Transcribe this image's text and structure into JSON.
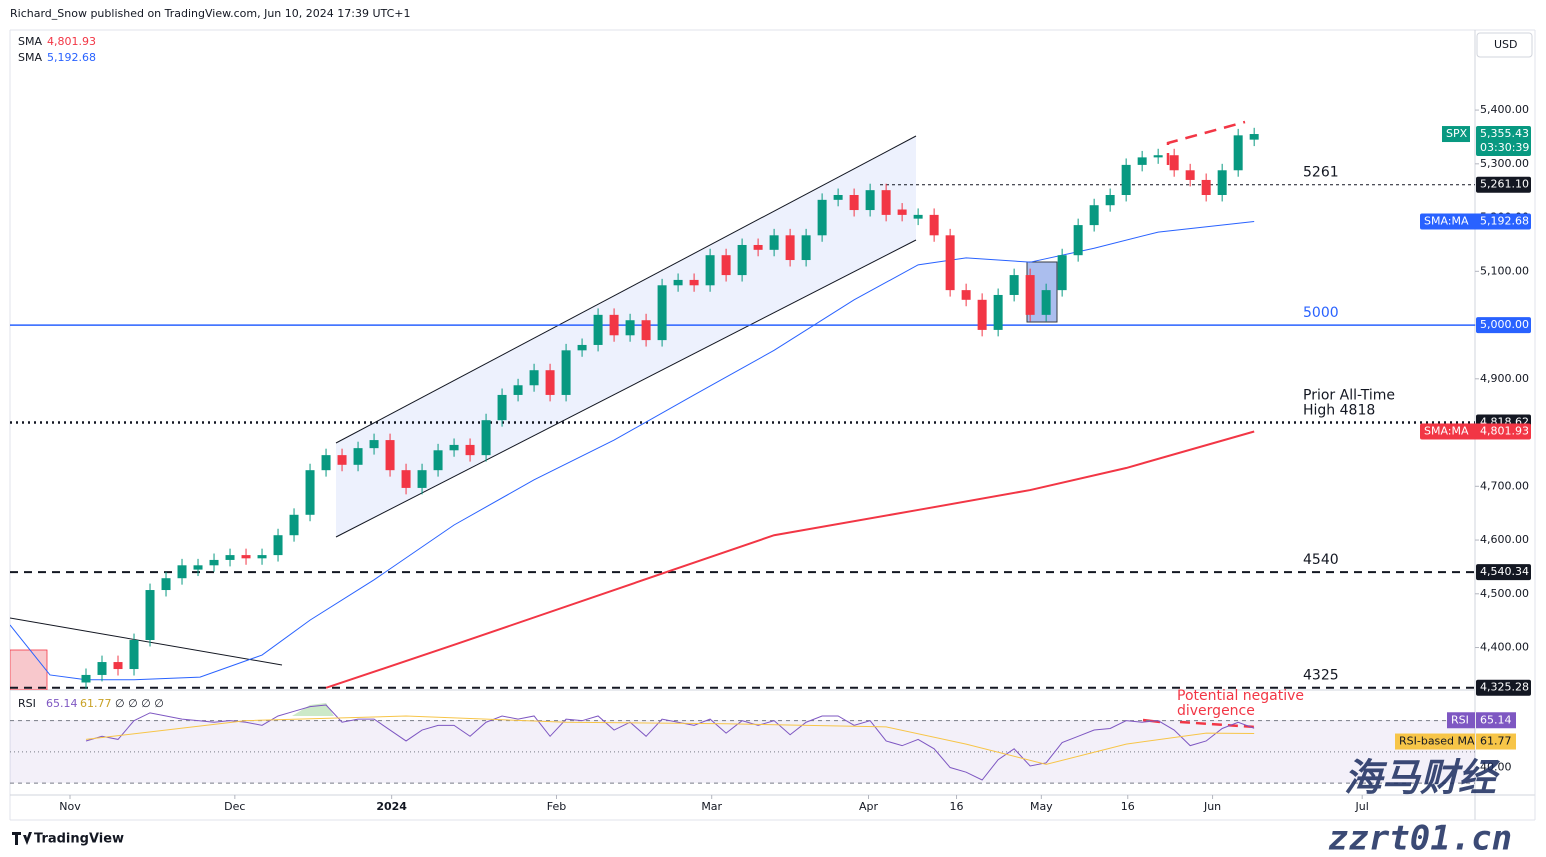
{
  "credit": "Richard_Snow published on TradingView.com, Jun 10, 2024 17:39 UTC+1",
  "currency": "USD",
  "brand": "TradingView",
  "watermark": [
    "海马财经",
    "zzrt01.cn"
  ],
  "chart_data": [
    {
      "type": "candlestick",
      "up_color": "#089981",
      "down_color": "#f23645",
      "open": [
        4335,
        4349,
        4373,
        4360,
        4414,
        4507,
        4529,
        4545,
        4553,
        4563,
        4572,
        4566,
        4572,
        4609,
        4647,
        4730,
        4758,
        4740,
        4771,
        4786,
        4730,
        4697,
        4730,
        4767,
        4777,
        4758,
        4823,
        4870,
        4888,
        4916,
        4870,
        4953,
        4963,
        5019,
        4981,
        5009,
        4972,
        5074,
        5084,
        5074,
        5130,
        5093,
        5149,
        5140,
        5167,
        5121,
        5167,
        5233,
        5242,
        5214,
        5251,
        5215,
        5198,
        5205,
        5167,
        5065,
        5047,
        4991,
        5056,
        5093,
        5019,
        5065,
        5130,
        5186,
        5223,
        5242,
        5298,
        5312,
        5316,
        5288,
        5270,
        5242,
        5288,
        5345
      ],
      "high": [
        4361,
        4385,
        4385,
        4426,
        4519,
        4541,
        4565,
        4565,
        4575,
        4584,
        4584,
        4584,
        4621,
        4659,
        4742,
        4770,
        4770,
        4783,
        4798,
        4798,
        4742,
        4742,
        4779,
        4789,
        4789,
        4835,
        4882,
        4900,
        4928,
        4928,
        4965,
        4975,
        5031,
        5031,
        5021,
        5021,
        5086,
        5096,
        5096,
        5142,
        5142,
        5161,
        5161,
        5179,
        5179,
        5179,
        5245,
        5254,
        5254,
        5263,
        5263,
        5227,
        5217,
        5217,
        5179,
        5077,
        5059,
        5068,
        5105,
        5105,
        5077,
        5142,
        5198,
        5235,
        5254,
        5310,
        5324,
        5328,
        5328,
        5300,
        5282,
        5300,
        5365,
        5367
      ],
      "low": [
        4323,
        4337,
        4348,
        4348,
        4402,
        4495,
        4517,
        4533,
        4541,
        4551,
        4554,
        4554,
        4560,
        4597,
        4635,
        4718,
        4728,
        4728,
        4759,
        4718,
        4685,
        4685,
        4718,
        4755,
        4746,
        4746,
        4811,
        4858,
        4876,
        4858,
        4858,
        4941,
        4951,
        4969,
        4969,
        4960,
        4960,
        5062,
        5062,
        5062,
        5081,
        5081,
        5128,
        5128,
        5109,
        5109,
        5155,
        5221,
        5202,
        5202,
        5193,
        5193,
        5186,
        5155,
        5053,
        5035,
        4979,
        4979,
        5044,
        5007,
        5007,
        5053,
        5118,
        5174,
        5211,
        5230,
        5286,
        5300,
        5276,
        5258,
        5230,
        5230,
        5276,
        5333
      ],
      "close": [
        4349,
        4373,
        4360,
        4414,
        4507,
        4529,
        4553,
        4553,
        4563,
        4572,
        4566,
        4572,
        4609,
        4647,
        4730,
        4758,
        4740,
        4771,
        4786,
        4730,
        4697,
        4730,
        4767,
        4777,
        4758,
        4823,
        4870,
        4888,
        4916,
        4870,
        4953,
        4963,
        5019,
        4981,
        5009,
        4972,
        5074,
        5084,
        5074,
        5130,
        5093,
        5149,
        5140,
        5167,
        5121,
        5167,
        5233,
        5242,
        5214,
        5251,
        5205,
        5205,
        5205,
        5167,
        5065,
        5047,
        4991,
        5056,
        5093,
        5019,
        5065,
        5130,
        5186,
        5223,
        5242,
        5298,
        5312,
        5316,
        5288,
        5270,
        5242,
        5288,
        5353,
        5355.43
      ],
      "last": {
        "symbol": "SPX",
        "label": "5,355.43",
        "countdown": "03:30:39"
      },
      "series": [
        {
          "name": "SMA",
          "tag": "SMA:MA",
          "color": "#f23645",
          "x": [
            15,
            23,
            33,
            43,
            52,
            59,
            65,
            73
          ],
          "values": [
            4325,
            4405,
            4507,
            4609,
            4656,
            4693,
            4734,
            4801.93
          ],
          "value_labels": [
            null,
            null,
            null,
            null,
            null,
            null,
            null,
            "4,801.93"
          ]
        },
        {
          "name": "SMA",
          "tag": "SMA:MA",
          "color": "#2962ff",
          "x": [
            -4.75,
            -2.25,
            0,
            3,
            7.125,
            11,
            14,
            18,
            23,
            28,
            33,
            38,
            43,
            48,
            52,
            55,
            59,
            63,
            67,
            73
          ],
          "values": [
            4442,
            4349,
            4340,
            4340,
            4345,
            4386,
            4451,
            4526,
            4628,
            4712,
            4786,
            4870,
            4953,
            5047,
            5112,
            5125,
            5117,
            5143,
            5173,
            5192.68
          ],
          "value_labels": [
            null,
            null,
            null,
            null,
            null,
            null,
            null,
            null,
            null,
            null,
            null,
            null,
            null,
            null,
            null,
            null,
            null,
            null,
            null,
            "5,192.68"
          ]
        }
      ],
      "levels": [
        {
          "value": 5261.1,
          "label": "5,261.10",
          "note": [
            "5261"
          ],
          "style": "dashed-thin",
          "color": "#131722"
        },
        {
          "value": 5000,
          "label": "5,000.00",
          "note": [
            "5000"
          ],
          "style": "solid",
          "color": "#2962ff"
        },
        {
          "value": 4818.62,
          "label": "4,818.62",
          "note": [
            "Prior All-Time",
            "High 4818"
          ],
          "style": "dotted",
          "color": "#131722"
        },
        {
          "value": 4540.34,
          "label": "4,540.34",
          "note": [
            "4540"
          ],
          "style": "dashed",
          "color": "#131722"
        },
        {
          "value": 4325.28,
          "label": "4,325.28",
          "note": [
            "4325"
          ],
          "style": "dashed",
          "color": "#131722"
        }
      ],
      "xlim": [
        -4.75,
        86.8
      ],
      "ylim": [
        4321,
        5549
      ],
      "yticks": [
        {
          "value": 4400,
          "label": "4,400.00"
        },
        {
          "value": 4500,
          "label": "4,500.00"
        },
        {
          "value": 4600,
          "label": "4,600.00"
        },
        {
          "value": 4700,
          "label": "4,700.00"
        },
        {
          "value": 4800,
          "label": "4,800.00"
        },
        {
          "value": 4900,
          "label": "4,900.00"
        },
        {
          "value": 5000,
          "label": "5,000.00"
        },
        {
          "value": 5100,
          "label": "5,100.00"
        },
        {
          "value": 5200,
          "label": "5,200.00"
        },
        {
          "value": 5300,
          "label": "5,300.00"
        },
        {
          "value": 5400,
          "label": "5,400.00"
        }
      ],
      "xticks": [
        {
          "value": -1,
          "label": "Nov"
        },
        {
          "value": 9.3,
          "label": "Dec"
        },
        {
          "value": 19.1,
          "label": "2024"
        },
        {
          "value": 29.4,
          "label": "Feb"
        },
        {
          "value": 39.1,
          "label": "Mar"
        },
        {
          "value": 48.9,
          "label": "Apr"
        },
        {
          "value": 54.4,
          "label": "16"
        },
        {
          "value": 59.7,
          "label": "May"
        },
        {
          "value": 65.1,
          "label": "16"
        },
        {
          "value": 70.4,
          "label": "Jun"
        },
        {
          "value": 79.75,
          "label": "Jul"
        }
      ]
    },
    {
      "type": "line",
      "title": "RSI",
      "header_extra": "∅ ∅ ∅ ∅",
      "series": [
        {
          "name": "RSI",
          "color": "#7e57c2",
          "values": [
            57,
            60,
            58,
            70,
            75,
            73,
            71,
            70,
            69,
            70,
            69,
            67,
            73,
            76,
            79,
            80,
            69,
            71,
            71,
            64,
            57,
            64,
            67,
            67,
            60,
            69,
            73,
            71,
            73,
            60,
            71,
            70,
            73,
            64,
            69,
            60,
            71,
            69,
            67,
            71,
            62,
            70,
            67,
            70,
            61,
            69,
            73,
            73,
            67,
            70,
            57,
            54,
            58,
            52,
            40,
            37,
            32,
            45,
            52,
            41,
            43,
            56,
            60,
            64,
            65,
            70,
            69,
            70,
            64,
            54,
            57,
            65,
            69,
            65.14
          ],
          "value_labels": [
            null,
            null,
            null,
            null,
            null,
            null,
            null,
            null,
            null,
            null,
            null,
            null,
            null,
            null,
            null,
            null,
            null,
            null,
            null,
            null,
            null,
            null,
            null,
            null,
            null,
            null,
            null,
            null,
            null,
            null,
            null,
            null,
            null,
            null,
            null,
            null,
            null,
            null,
            null,
            null,
            null,
            null,
            null,
            null,
            null,
            null,
            null,
            null,
            null,
            null,
            null,
            null,
            null,
            null,
            null,
            null,
            null,
            null,
            null,
            null,
            null,
            null,
            null,
            null,
            null,
            null,
            null,
            null,
            null,
            null,
            null,
            null,
            null,
            "65.14"
          ]
        },
        {
          "name": "RSI-based MA",
          "color": "#f7c548",
          "x": [
            0,
            10,
            20,
            30,
            40,
            50,
            55,
            60,
            65,
            70,
            73
          ],
          "values": [
            58,
            70,
            73,
            69,
            68,
            66,
            55,
            42,
            55,
            62,
            61.77
          ],
          "value_labels": [
            null,
            null,
            null,
            null,
            null,
            null,
            null,
            null,
            null,
            null,
            "61.77"
          ]
        }
      ],
      "hlines": [
        70,
        50,
        30
      ],
      "ylim": [
        22.4,
        89
      ],
      "yticks": [
        {
          "value": 40,
          "label": "40.00"
        }
      ],
      "annotation": [
        "Potential negative",
        "divergence"
      ]
    }
  ]
}
